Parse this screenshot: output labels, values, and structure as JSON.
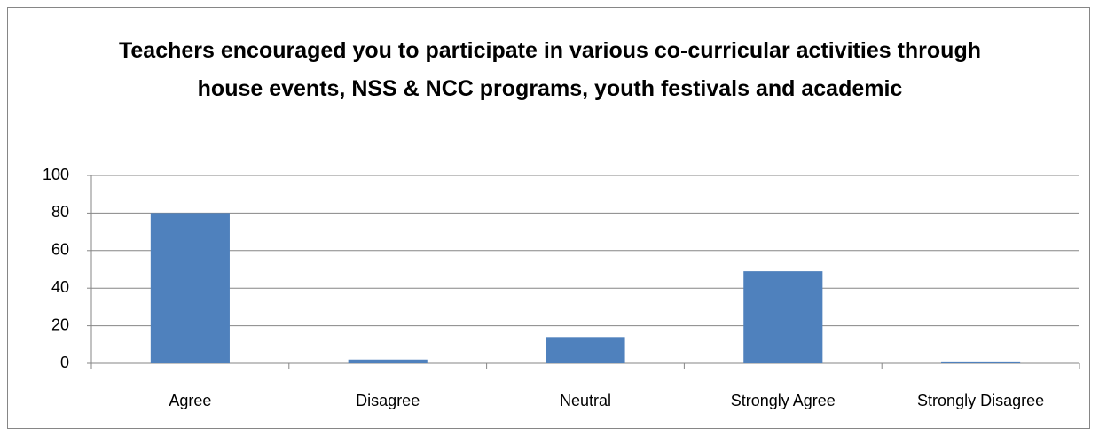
{
  "chart_data": {
    "type": "bar",
    "title": "Teachers encouraged you to participate in various co-curricular activities through house events, NSS & NCC programs,  youth festivals and academic",
    "categories": [
      "Agree",
      "Disagree",
      "Neutral",
      "Strongly Agree",
      "Strongly Disagree"
    ],
    "values": [
      80,
      2,
      14,
      49,
      1
    ],
    "color": "#4f81bd",
    "ylim": [
      0,
      100
    ],
    "yticks": [
      0,
      20,
      40,
      60,
      80,
      100
    ],
    "grid": true
  }
}
